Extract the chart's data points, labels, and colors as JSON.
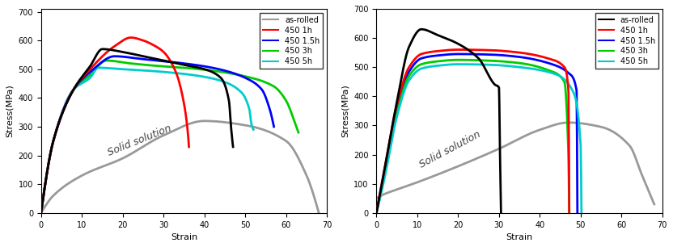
{
  "left": {
    "xlabel": "Strain",
    "ylabel": "Stress(MPa)",
    "xlim": [
      0,
      70
    ],
    "ylim": [
      0,
      710
    ],
    "xticks": [
      0,
      10,
      20,
      30,
      40,
      50,
      60,
      70
    ],
    "yticks": [
      0,
      100,
      200,
      300,
      400,
      500,
      600,
      700
    ]
  },
  "right": {
    "xlabel": "Strain",
    "ylabel": "Stress(MPa)",
    "xlim": [
      0,
      70
    ],
    "ylim": [
      0,
      700
    ],
    "xticks": [
      0,
      10,
      20,
      30,
      40,
      50,
      60,
      70
    ],
    "yticks": [
      0,
      100,
      200,
      300,
      400,
      500,
      600,
      700
    ]
  },
  "legend_labels": [
    "as-rolled",
    "450 1h",
    "450 1.5h",
    "450 3h",
    "450 5h"
  ],
  "legend_colors": [
    "#000000",
    "#ff0000",
    "#0000ff",
    "#00cc00",
    "#00cccc"
  ],
  "solid_solution_color": "#999999"
}
